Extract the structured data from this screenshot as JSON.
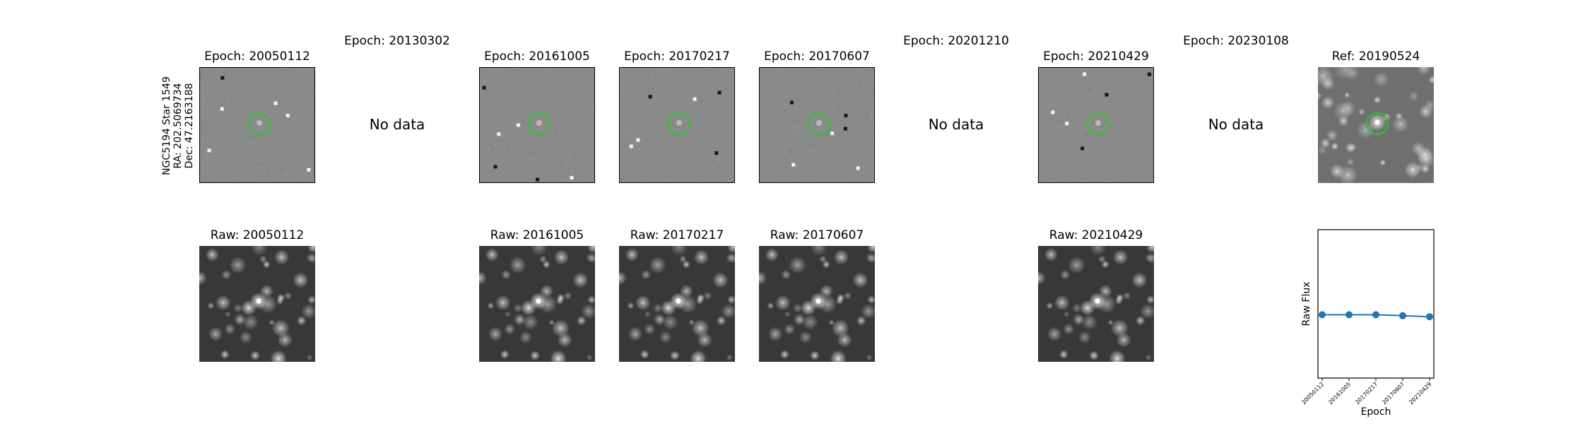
{
  "target": {
    "name": "NGC5194 Star 1549",
    "ra": "RA: 202.5069734",
    "dec": "Dec: 47.2163188"
  },
  "no_data_text": "No data",
  "top_row": [
    {
      "title": "Epoch: 20050112",
      "has_data": true
    },
    {
      "title": "Epoch: 20130302",
      "has_data": false
    },
    {
      "title": "Epoch: 20161005",
      "has_data": true
    },
    {
      "title": "Epoch: 20170217",
      "has_data": true
    },
    {
      "title": "Epoch: 20170607",
      "has_data": true
    },
    {
      "title": "Epoch: 20201210",
      "has_data": false
    },
    {
      "title": "Epoch: 20210429",
      "has_data": true
    },
    {
      "title": "Epoch: 20230108",
      "has_data": false
    },
    {
      "title": "Ref: 20190524",
      "has_data": true
    }
  ],
  "bottom_row": [
    {
      "title": "Raw: 20050112"
    },
    {
      "title": "Raw: 20161005"
    },
    {
      "title": "Raw: 20170217"
    },
    {
      "title": "Raw: 20170607"
    },
    {
      "title": "Raw: 20210429"
    }
  ],
  "colors": {
    "marker_circle": "#22cc22",
    "series": "#1f77b4",
    "diff_background": "#8a8a8a",
    "raw_background": "#383838"
  },
  "chart_data": {
    "type": "line",
    "x": [
      "20050112",
      "20161005",
      "20170217",
      "20170607",
      "20210429"
    ],
    "series": [
      {
        "values": [
          0.64,
          0.64,
          0.64,
          0.63,
          0.62
        ]
      }
    ],
    "xlabel": "Epoch",
    "ylabel": "Raw Flux",
    "ylim": [
      0,
      1.5
    ],
    "grid": false
  }
}
